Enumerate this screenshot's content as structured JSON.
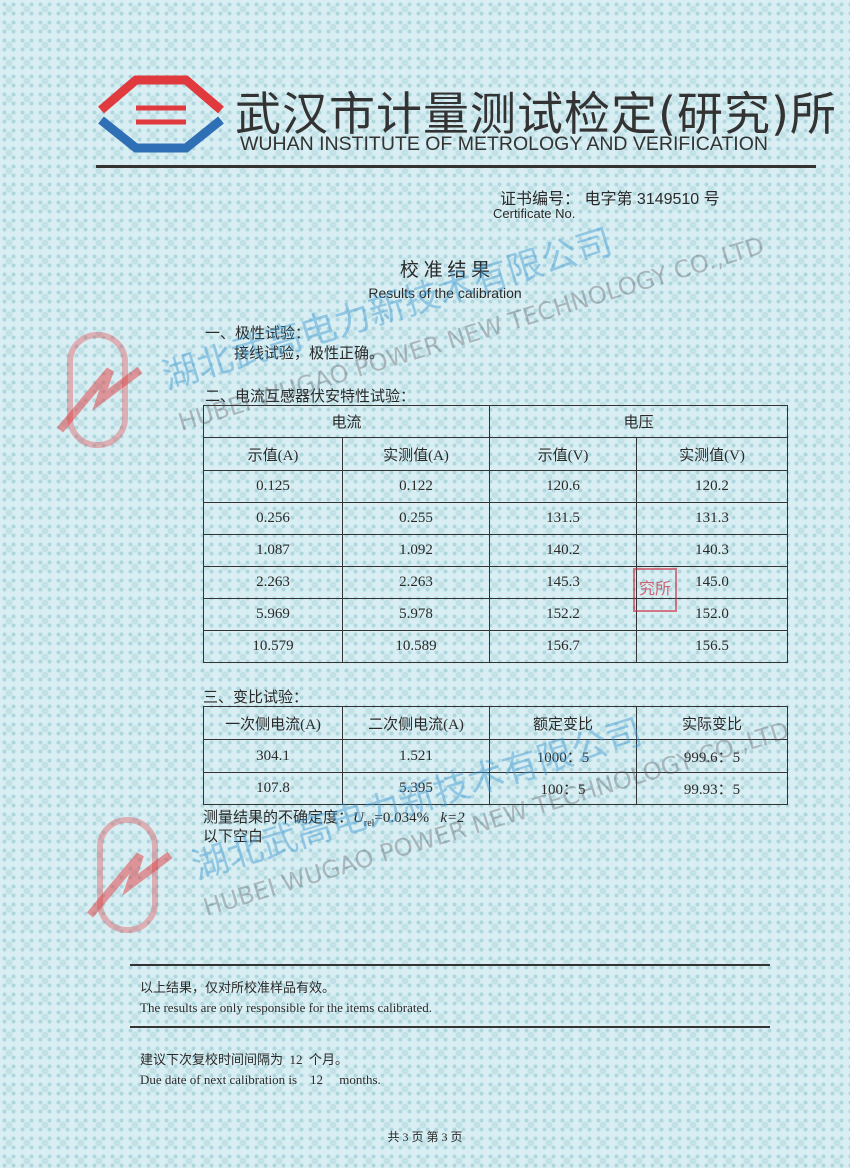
{
  "header": {
    "title_cn": "武汉市计量测试检定(研究)所",
    "title_en": "WUHAN INSTITUTE OF METROLOGY AND VERIFICATION"
  },
  "certificate": {
    "label_cn": "证书编号：",
    "number": "电字第 3149510 号",
    "label_en": "Certificate No."
  },
  "section_title": {
    "cn": "校 准 结 果",
    "en": "Results of the calibration"
  },
  "polarity": {
    "heading": "一、极性试验：",
    "result": "接线试验，极性正确。"
  },
  "va_test": {
    "heading": "二、电流互感器伏安特性试验：",
    "group_headers": [
      "电流",
      "电压"
    ],
    "columns": [
      "示值(A)",
      "实测值(A)",
      "示值(V)",
      "实测值(V)"
    ],
    "rows": [
      [
        "0.125",
        "0.122",
        "120.6",
        "120.2"
      ],
      [
        "0.256",
        "0.255",
        "131.5",
        "131.3"
      ],
      [
        "1.087",
        "1.092",
        "140.2",
        "140.3"
      ],
      [
        "2.263",
        "2.263",
        "145.3",
        "145.0"
      ],
      [
        "5.969",
        "5.978",
        "152.2",
        "152.0"
      ],
      [
        "10.579",
        "10.589",
        "156.7",
        "156.5"
      ]
    ]
  },
  "ratio_test": {
    "heading": "三、变比试验：",
    "columns": [
      "一次侧电流(A)",
      "二次侧电流(A)",
      "额定变比",
      "实际变比"
    ],
    "rows": [
      [
        "304.1",
        "1.521",
        "1000：5",
        "999.6：5"
      ],
      [
        "107.8",
        "5.395",
        "100：5",
        "99.93：5"
      ]
    ]
  },
  "uncertainty": {
    "label": "测量结果的不确定度：",
    "symbol": "U",
    "sub": "rel",
    "value": "=0.034%",
    "k": "k=2"
  },
  "blank_note": "以下空白",
  "validity": {
    "cn": "以上结果，仅对所校准样品有效。",
    "en": "The results are only responsible for the items calibrated."
  },
  "due": {
    "cn": "建议下次复校时间间隔为  12  个月。",
    "en": "Due date of next calibration is    12     months."
  },
  "footer": "共 3 页 第 3 页",
  "watermark": {
    "cn": "湖北武高电力新技术有限公司",
    "en": "HUBEI WUGAO POWER NEW TECHNOLOGY CO.,LTD"
  },
  "stamp": "究所",
  "colors": {
    "logo_red": "#e0393e",
    "logo_blue": "#2f6fb5",
    "watermark": "#3c96d2"
  }
}
